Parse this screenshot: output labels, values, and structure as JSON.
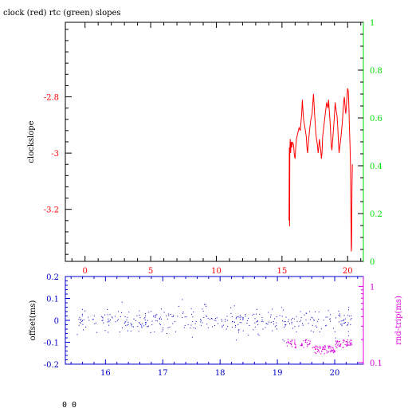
{
  "chart_data": [
    {
      "type": "line",
      "title": "clock (red) rtc (green) slopes",
      "ylabel": "clockslope",
      "xlim": [
        -1.5,
        21.2
      ],
      "ylim": [
        -3.385,
        -2.535
      ],
      "y2lim": [
        0,
        1
      ],
      "xticks": [
        "0",
        "5",
        "10",
        "15",
        "20"
      ],
      "yticks": [
        "-2.8",
        "-3",
        "-3.2"
      ],
      "y2ticks": [
        "0",
        "0.2",
        "0.4",
        "0.6",
        "0.8",
        "1"
      ],
      "colors": {
        "clock": "#ff0000",
        "rtc": "#00dd00",
        "frame": "#000000"
      },
      "series": [
        {
          "name": "clock",
          "x": [
            15.54,
            15.56,
            15.58,
            15.6,
            15.63,
            15.66,
            15.7,
            15.75,
            15.8,
            15.88,
            15.95,
            16.0,
            16.05,
            16.1,
            16.2,
            16.3,
            16.4,
            16.45,
            16.5,
            16.55,
            16.6,
            16.65,
            16.75,
            16.85,
            16.9,
            16.95,
            17.0,
            17.1,
            17.2,
            17.3,
            17.35,
            17.4,
            17.45,
            17.5,
            17.55,
            17.6,
            17.7,
            17.75,
            17.8,
            17.85,
            17.9,
            17.95,
            18.0,
            18.05,
            18.1,
            18.2,
            18.3,
            18.4,
            18.5,
            18.55,
            18.6,
            18.65,
            18.7,
            18.75,
            18.8,
            18.85,
            18.95,
            19.0,
            19.05,
            19.1,
            19.2,
            19.25,
            19.3,
            19.35,
            19.4,
            19.5,
            19.6,
            19.65,
            19.7,
            19.75,
            19.8,
            19.85,
            19.9,
            19.95,
            20.0,
            20.05,
            20.1,
            20.13,
            20.18,
            20.22,
            20.25,
            20.28,
            20.3,
            20.33,
            20.36
          ],
          "y": [
            -3.24,
            -2.98,
            -3.26,
            -2.99,
            -2.95,
            -3.0,
            -2.96,
            -2.98,
            -2.96,
            -2.97,
            -3.01,
            -3.02,
            -2.98,
            -2.95,
            -2.93,
            -2.91,
            -2.92,
            -2.89,
            -2.86,
            -2.81,
            -2.85,
            -2.88,
            -2.91,
            -2.94,
            -2.98,
            -3.0,
            -2.97,
            -2.92,
            -2.88,
            -2.86,
            -2.82,
            -2.79,
            -2.83,
            -2.87,
            -2.91,
            -2.94,
            -2.97,
            -3.0,
            -2.98,
            -2.95,
            -2.97,
            -2.99,
            -3.02,
            -3.0,
            -2.94,
            -2.9,
            -2.86,
            -2.82,
            -2.84,
            -2.81,
            -2.85,
            -2.88,
            -2.92,
            -2.97,
            -2.99,
            -2.96,
            -2.9,
            -2.86,
            -2.82,
            -2.84,
            -2.87,
            -2.91,
            -2.96,
            -3.0,
            -2.98,
            -2.94,
            -2.89,
            -2.85,
            -2.82,
            -2.8,
            -2.83,
            -2.86,
            -2.84,
            -2.8,
            -2.77,
            -2.78,
            -2.84,
            -2.9,
            -2.97,
            -3.05,
            -3.2,
            -3.35,
            -3.33,
            -3.12,
            -3.04
          ]
        },
        {
          "name": "rtc",
          "x": [],
          "y": []
        }
      ]
    },
    {
      "type": "scatter",
      "ylabel": "offset(ms)",
      "y2label": "rnd-trip(ms)",
      "xlim": [
        15.3,
        20.5
      ],
      "ylim": [
        -0.2,
        0.2
      ],
      "y2lim_log": [
        0.095,
        1.35
      ],
      "xticks": [
        "16",
        "17",
        "18",
        "19",
        "20"
      ],
      "yticks": [
        "0.2",
        "0.1",
        "0",
        "-0.1",
        "-0.2"
      ],
      "y2ticks": [
        "1",
        "0.1"
      ],
      "colors": {
        "offset": "#0000cc",
        "rndtrip": "#dd00dd",
        "axis": "#0000cc"
      },
      "series": [
        {
          "name": "offset",
          "x_range": [
            15.5,
            20.3
          ],
          "y_spread": 0.035,
          "count": 380
        },
        {
          "name": "rnd-trip",
          "x_range": [
            19.15,
            20.3
          ],
          "y_levels": [
            0.18,
            0.15,
            0.18
          ],
          "count": 160
        }
      ]
    }
  ],
  "footer": {
    "text": "0 0"
  }
}
